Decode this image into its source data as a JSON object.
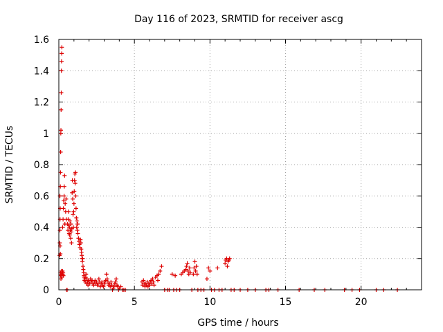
{
  "chart_data": {
    "type": "scatter",
    "title": "Day 116 of 2023, SRMTID for receiver ascg",
    "xlabel": "GPS time / hours",
    "ylabel": "SRMTID / TECUs",
    "xlim": [
      0,
      24
    ],
    "ylim": [
      0,
      1.6
    ],
    "x_ticks": [
      0,
      5,
      10,
      15,
      20
    ],
    "x_tick_labels": [
      "0",
      "5",
      "10",
      "15",
      "20"
    ],
    "y_ticks": [
      0,
      0.2,
      0.4,
      0.6,
      0.8,
      1.0,
      1.2,
      1.4,
      1.6
    ],
    "y_tick_labels": [
      "0",
      "0.2",
      "0.4",
      "0.6",
      "0.8",
      "1",
      "1.2",
      "1.4",
      "1.6"
    ],
    "grid": true,
    "marker": "+",
    "color": "#dd0000",
    "series": [
      {
        "name": "SRMTID",
        "points": [
          [
            0.05,
            0.22
          ],
          [
            0.06,
            0.3
          ],
          [
            0.07,
            0.38
          ],
          [
            0.08,
            0.45
          ],
          [
            0.09,
            0.52
          ],
          [
            0.1,
            0.66
          ],
          [
            0.11,
            0.75
          ],
          [
            0.12,
            0.88
          ],
          [
            0.13,
            1.0
          ],
          [
            0.14,
            1.02
          ],
          [
            0.15,
            1.15
          ],
          [
            0.16,
            1.26
          ],
          [
            0.17,
            1.4
          ],
          [
            0.18,
            1.46
          ],
          [
            0.19,
            1.51
          ],
          [
            0.2,
            1.55
          ],
          [
            0.07,
            0.6
          ],
          [
            0.09,
            0.28
          ],
          [
            0.1,
            0.23
          ],
          [
            0.11,
            0.11
          ],
          [
            0.12,
            0.09
          ],
          [
            0.14,
            0.07
          ],
          [
            0.16,
            0.1
          ],
          [
            0.18,
            0.12
          ],
          [
            0.2,
            0.08
          ],
          [
            0.22,
            0.1
          ],
          [
            0.24,
            0.12
          ],
          [
            0.26,
            0.1
          ],
          [
            0.28,
            0.11
          ],
          [
            0.3,
            0.09
          ],
          [
            0.25,
            0.4
          ],
          [
            0.28,
            0.45
          ],
          [
            0.3,
            0.52
          ],
          [
            0.32,
            0.57
          ],
          [
            0.35,
            0.6
          ],
          [
            0.36,
            0.66
          ],
          [
            0.38,
            0.73
          ],
          [
            0.4,
            0.42
          ],
          [
            0.42,
            0.55
          ],
          [
            0.45,
            0.5
          ],
          [
            0.48,
            0.58
          ],
          [
            0.5,
            0.45
          ],
          [
            0.52,
            0.0
          ],
          [
            0.55,
            0.0
          ],
          [
            0.58,
            0.42
          ],
          [
            0.6,
            0.38
          ],
          [
            0.62,
            0.45
          ],
          [
            0.64,
            0.5
          ],
          [
            0.66,
            0.41
          ],
          [
            0.68,
            0.36
          ],
          [
            0.7,
            0.4
          ],
          [
            0.72,
            0.35
          ],
          [
            0.74,
            0.44
          ],
          [
            0.76,
            0.38
          ],
          [
            0.78,
            0.33
          ],
          [
            0.8,
            0.42
          ],
          [
            0.82,
            0.37
          ],
          [
            0.84,
            0.3
          ],
          [
            0.86,
            0.39
          ],
          [
            0.88,
            0.62
          ],
          [
            0.9,
            0.7
          ],
          [
            0.92,
            0.58
          ],
          [
            0.94,
            0.48
          ],
          [
            0.96,
            0.4
          ],
          [
            0.98,
            0.5
          ],
          [
            1.0,
            0.55
          ],
          [
            1.02,
            0.63
          ],
          [
            1.04,
            0.7
          ],
          [
            1.06,
            0.74
          ],
          [
            1.08,
            0.68
          ],
          [
            1.1,
            0.75
          ],
          [
            1.12,
            0.6
          ],
          [
            1.14,
            0.52
          ],
          [
            1.16,
            0.46
          ],
          [
            1.18,
            0.4
          ],
          [
            1.2,
            0.44
          ],
          [
            1.22,
            0.38
          ],
          [
            1.24,
            0.42
          ],
          [
            1.26,
            0.36
          ],
          [
            1.3,
            0.33
          ],
          [
            1.33,
            0.31
          ],
          [
            1.36,
            0.29
          ],
          [
            1.4,
            0.27
          ],
          [
            1.43,
            0.32
          ],
          [
            1.46,
            0.3
          ],
          [
            1.48,
            0.26
          ],
          [
            1.5,
            0.24
          ],
          [
            1.52,
            0.22
          ],
          [
            1.54,
            0.2
          ],
          [
            1.56,
            0.18
          ],
          [
            1.58,
            0.2
          ],
          [
            1.6,
            0.15
          ],
          [
            1.62,
            0.13
          ],
          [
            1.64,
            0.11
          ],
          [
            1.66,
            0.09
          ],
          [
            1.68,
            0.08
          ],
          [
            1.7,
            0.06
          ],
          [
            1.72,
            0.07
          ],
          [
            1.75,
            0.05
          ],
          [
            1.78,
            0.08
          ],
          [
            1.8,
            0.1
          ],
          [
            1.83,
            0.04
          ],
          [
            1.86,
            0.07
          ],
          [
            1.9,
            0.05
          ],
          [
            1.93,
            0.03
          ],
          [
            1.96,
            0.06
          ],
          [
            2.0,
            0.05
          ],
          [
            2.05,
            0.04
          ],
          [
            2.1,
            0.07
          ],
          [
            2.15,
            0.05
          ],
          [
            2.2,
            0.06
          ],
          [
            2.25,
            0.04
          ],
          [
            2.3,
            0.03
          ],
          [
            2.35,
            0.05
          ],
          [
            2.4,
            0.06
          ],
          [
            2.45,
            0.04
          ],
          [
            2.5,
            0.05
          ],
          [
            2.55,
            0.03
          ],
          [
            2.6,
            0.04
          ],
          [
            2.65,
            0.07
          ],
          [
            2.7,
            0.05
          ],
          [
            2.75,
            0.02
          ],
          [
            2.8,
            0.04
          ],
          [
            2.85,
            0.05
          ],
          [
            2.9,
            0.03
          ],
          [
            2.95,
            0.02
          ],
          [
            3.0,
            0.05
          ],
          [
            3.05,
            0.04
          ],
          [
            3.1,
            0.06
          ],
          [
            3.15,
            0.1
          ],
          [
            3.2,
            0.07
          ],
          [
            3.25,
            0.05
          ],
          [
            3.3,
            0.03
          ],
          [
            3.35,
            0.04
          ],
          [
            3.4,
            0.02
          ],
          [
            3.45,
            0.05
          ],
          [
            3.5,
            0.03
          ],
          [
            3.55,
            0.0
          ],
          [
            3.6,
            0.01
          ],
          [
            3.65,
            0.02
          ],
          [
            3.7,
            0.04
          ],
          [
            3.75,
            0.05
          ],
          [
            3.8,
            0.07
          ],
          [
            3.85,
            0.03
          ],
          [
            3.9,
            0.02
          ],
          [
            3.95,
            0.0
          ],
          [
            4.0,
            0.01
          ],
          [
            4.1,
            0.02
          ],
          [
            4.2,
            0.0
          ],
          [
            4.3,
            0.0
          ],
          [
            4.4,
            0.0
          ],
          [
            5.5,
            0.05
          ],
          [
            5.55,
            0.03
          ],
          [
            5.6,
            0.06
          ],
          [
            5.65,
            0.04
          ],
          [
            5.7,
            0.02
          ],
          [
            5.75,
            0.04
          ],
          [
            5.8,
            0.03
          ],
          [
            5.85,
            0.05
          ],
          [
            5.9,
            0.02
          ],
          [
            5.95,
            0.04
          ],
          [
            6.0,
            0.03
          ],
          [
            6.05,
            0.05
          ],
          [
            6.1,
            0.06
          ],
          [
            6.15,
            0.04
          ],
          [
            6.2,
            0.07
          ],
          [
            6.25,
            0.05
          ],
          [
            6.3,
            0.03
          ],
          [
            6.4,
            0.08
          ],
          [
            6.5,
            0.09
          ],
          [
            6.55,
            0.06
          ],
          [
            6.6,
            0.1
          ],
          [
            6.7,
            0.12
          ],
          [
            6.8,
            0.15
          ],
          [
            7.0,
            0.0
          ],
          [
            7.2,
            0.0
          ],
          [
            7.3,
            0.0
          ],
          [
            7.5,
            0.1
          ],
          [
            7.6,
            0.0
          ],
          [
            7.7,
            0.09
          ],
          [
            7.8,
            0.0
          ],
          [
            8.0,
            0.0
          ],
          [
            8.1,
            0.1
          ],
          [
            8.2,
            0.11
          ],
          [
            8.3,
            0.12
          ],
          [
            8.4,
            0.13
          ],
          [
            8.45,
            0.15
          ],
          [
            8.5,
            0.17
          ],
          [
            8.55,
            0.12
          ],
          [
            8.6,
            0.1
          ],
          [
            8.65,
            0.14
          ],
          [
            8.7,
            0.11
          ],
          [
            8.8,
            0.0
          ],
          [
            8.9,
            0.1
          ],
          [
            8.95,
            0.14
          ],
          [
            9.0,
            0.18
          ],
          [
            9.05,
            0.12
          ],
          [
            9.1,
            0.15
          ],
          [
            9.15,
            0.1
          ],
          [
            9.2,
            0.0
          ],
          [
            9.4,
            0.0
          ],
          [
            9.6,
            0.0
          ],
          [
            9.8,
            0.07
          ],
          [
            9.9,
            0.14
          ],
          [
            10.0,
            0.12
          ],
          [
            10.1,
            0.0
          ],
          [
            10.3,
            0.0
          ],
          [
            10.5,
            0.14
          ],
          [
            10.6,
            0.0
          ],
          [
            10.8,
            0.0
          ],
          [
            11.0,
            0.17
          ],
          [
            11.05,
            0.19
          ],
          [
            11.1,
            0.2
          ],
          [
            11.15,
            0.15
          ],
          [
            11.2,
            0.18
          ],
          [
            11.25,
            0.19
          ],
          [
            11.3,
            0.2
          ],
          [
            11.4,
            0.0
          ],
          [
            11.6,
            0.0
          ],
          [
            12.0,
            0.0
          ],
          [
            12.5,
            0.0
          ],
          [
            13.0,
            0.0
          ],
          [
            13.7,
            0.0
          ],
          [
            13.9,
            0.0
          ],
          [
            14.5,
            0.0
          ],
          [
            15.9,
            0.0
          ],
          [
            16.9,
            0.0
          ],
          [
            17.6,
            0.0
          ],
          [
            18.9,
            0.0
          ],
          [
            19.4,
            0.0
          ],
          [
            19.9,
            0.0
          ],
          [
            21.0,
            0.0
          ],
          [
            21.5,
            0.0
          ],
          [
            22.4,
            0.0
          ]
        ]
      }
    ]
  }
}
